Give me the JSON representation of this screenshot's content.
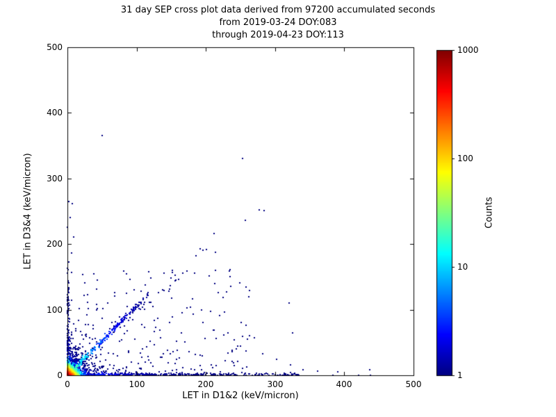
{
  "chart_data": {
    "type": "scatter",
    "title_lines": [
      "31 day SEP cross plot data derived from 97200 accumulated seconds",
      "from 2019-03-24 DOY:083",
      "through 2019-04-23 DOY:113"
    ],
    "xlabel": "LET in D1&2 (keV/micron)",
    "ylabel": "LET in D3&4 (keV/micron)",
    "xlim": [
      0,
      500
    ],
    "ylim": [
      0,
      500
    ],
    "xticks": [
      0,
      100,
      200,
      300,
      400,
      500
    ],
    "yticks": [
      0,
      100,
      200,
      300,
      400,
      500
    ],
    "grid": false,
    "marker_color_low": "#00007f",
    "marker_color_high": "#7f0000",
    "colorbar": {
      "label": "Counts",
      "scale": "log",
      "min": 1,
      "max": 1000,
      "ticks": [
        1,
        10,
        100,
        1000
      ],
      "colormap": "jet"
    },
    "seed": 20190324,
    "generators": [
      {
        "kind": "blob",
        "n": 1400,
        "scale_x": 4.5,
        "scale_y": 4.5,
        "count_max": 900,
        "count_falloff": 5.5
      },
      {
        "kind": "blob",
        "n": 600,
        "scale_x": 14,
        "scale_y": 14,
        "count_max": 6,
        "count_falloff": 12
      },
      {
        "kind": "diag",
        "n": 260,
        "length": 118,
        "slope": 1.05,
        "jitter": 2.5,
        "power": 1.6,
        "count_max": 40,
        "count_falloff": 22
      },
      {
        "kind": "diag",
        "n": 22,
        "length": 205,
        "slope": 0.98,
        "jitter": 6,
        "power": 1.0,
        "count_max": 1,
        "count_falloff": 1
      },
      {
        "kind": "band_x",
        "n": 380,
        "max": 335,
        "power": 1.8,
        "thickness": 3.5,
        "count_max": 6,
        "count_falloff": 45
      },
      {
        "kind": "band_x",
        "n": 14,
        "max": 445,
        "power": 1.0,
        "thickness": 3,
        "count_max": 1,
        "count_falloff": 1
      },
      {
        "kind": "band_y",
        "n": 130,
        "max": 150,
        "power": 1.8,
        "thickness": 2.5,
        "count_max": 4,
        "count_falloff": 40
      },
      {
        "kind": "band_y",
        "n": 10,
        "max": 265,
        "power": 1.0,
        "thickness": 2.5,
        "count_max": 1,
        "count_falloff": 1
      },
      {
        "kind": "field",
        "n": 260,
        "xmax": 265,
        "ymax": 165,
        "xpow": 1.6,
        "ypow": 1.8
      }
    ],
    "outlier_points": [
      [
        50,
        365
      ],
      [
        253,
        331
      ],
      [
        277,
        252
      ],
      [
        284,
        251
      ],
      [
        257,
        236
      ],
      [
        212,
        216
      ],
      [
        196,
        191
      ],
      [
        214,
        188
      ],
      [
        320,
        110
      ],
      [
        325,
        65
      ],
      [
        230,
        127
      ],
      [
        262,
        120
      ],
      [
        205,
        152
      ],
      [
        161,
        146
      ],
      [
        227,
        96
      ],
      [
        251,
        80
      ],
      [
        282,
        33
      ],
      [
        302,
        24
      ],
      [
        322,
        16
      ],
      [
        340,
        9
      ],
      [
        361,
        6
      ],
      [
        391,
        5
      ],
      [
        437,
        8
      ],
      [
        270,
        57
      ],
      [
        241,
        54
      ],
      [
        212,
        69
      ],
      [
        182,
        93
      ],
      [
        151,
        118
      ],
      [
        131,
        87
      ],
      [
        96,
        130
      ],
      [
        110,
        108
      ],
      [
        7,
        262
      ],
      [
        4,
        240
      ],
      [
        9,
        211
      ],
      [
        6,
        186
      ]
    ]
  }
}
